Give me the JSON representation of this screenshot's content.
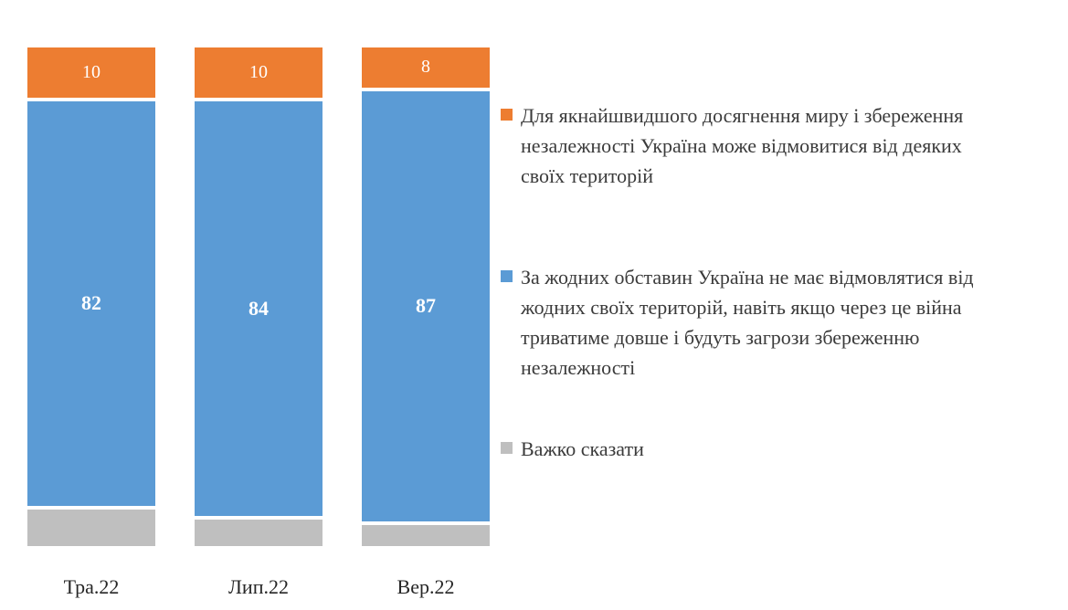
{
  "chart_data": {
    "type": "bar",
    "subtype": "stacked-vertical-100",
    "title": "",
    "xlabel": "",
    "ylabel": "",
    "ylim": [
      0,
      100
    ],
    "grid": false,
    "legend_position": "right",
    "categories": [
      "Тра.22",
      "Лип.22",
      "Вер.22"
    ],
    "stack_order_top_to_bottom": [
      "compromise-territories",
      "no-territorial-concessions",
      "hard-to-say"
    ],
    "series": [
      {
        "id": "compromise-territories",
        "name": "Для якнайшвидшого досягнення миру і збереження незалежності Україна може відмовитися від деяких своїх територій",
        "color": "#ED7D31",
        "values": [
          10,
          10,
          8
        ],
        "labels_visible": true
      },
      {
        "id": "no-territorial-concessions",
        "name": "За жодних обставин Україна не має відмовлятися від жодних своїх територій, навіть якщо через це війна триватиме довше і будуть загрози збереженню незалежності",
        "color": "#5B9BD5",
        "values": [
          82,
          84,
          87
        ],
        "labels_visible": true
      },
      {
        "id": "hard-to-say",
        "name": "Важко сказати",
        "color": "#BFBFBF",
        "values": [
          8,
          6,
          5
        ],
        "labels_visible": false
      }
    ]
  }
}
